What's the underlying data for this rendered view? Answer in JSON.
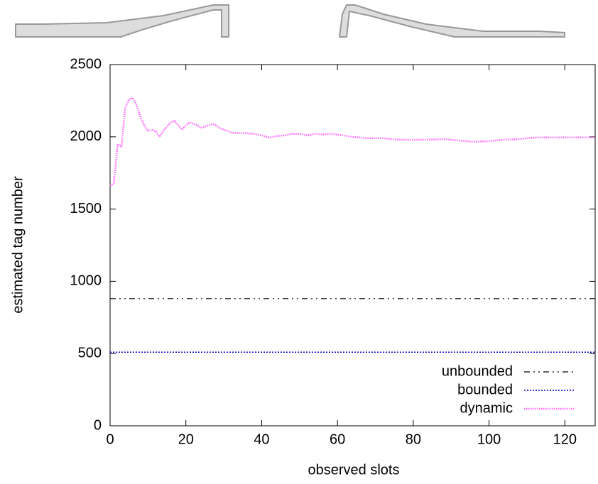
{
  "chart_data": {
    "type": "line",
    "xlabel": "observed slots",
    "ylabel": "estimated tag number",
    "xlim": [
      0,
      128
    ],
    "ylim": [
      0,
      2500
    ],
    "xticks": [
      0,
      20,
      40,
      60,
      80,
      100,
      120
    ],
    "yticks": [
      0,
      500,
      1000,
      1500,
      2000,
      2500
    ],
    "legend": "lower right",
    "series": [
      {
        "name": "unbounded",
        "color": "#000000",
        "x": [
          0,
          128
        ],
        "values": [
          880,
          880
        ]
      },
      {
        "name": "bounded",
        "color": "#0000cc",
        "x": [
          0,
          128
        ],
        "values": [
          510,
          510
        ]
      },
      {
        "name": "dynamic",
        "color": "#ff66ff",
        "x": [
          0,
          1,
          2,
          3,
          4,
          5,
          6,
          7,
          8,
          9,
          10,
          11,
          12,
          13,
          14,
          15,
          16,
          17,
          18,
          19,
          20,
          21,
          22,
          23,
          24,
          25,
          26,
          27,
          28,
          29,
          30,
          32,
          34,
          36,
          38,
          40,
          42,
          44,
          46,
          48,
          50,
          52,
          54,
          56,
          58,
          60,
          64,
          68,
          72,
          76,
          80,
          84,
          88,
          92,
          96,
          100,
          104,
          108,
          112,
          116,
          120,
          124,
          128
        ],
        "values": [
          1660,
          1680,
          1950,
          1930,
          2200,
          2260,
          2270,
          2220,
          2140,
          2080,
          2040,
          2050,
          2040,
          2000,
          2040,
          2070,
          2100,
          2110,
          2080,
          2050,
          2080,
          2100,
          2090,
          2080,
          2060,
          2070,
          2080,
          2090,
          2080,
          2060,
          2050,
          2030,
          2025,
          2025,
          2020,
          2010,
          1995,
          2005,
          2010,
          2020,
          2020,
          2010,
          2020,
          2015,
          2020,
          2015,
          2000,
          1990,
          1990,
          1980,
          1980,
          1980,
          1985,
          1975,
          1965,
          1970,
          1980,
          1985,
          1995,
          1995,
          1995,
          1995,
          1995
        ]
      }
    ]
  }
}
